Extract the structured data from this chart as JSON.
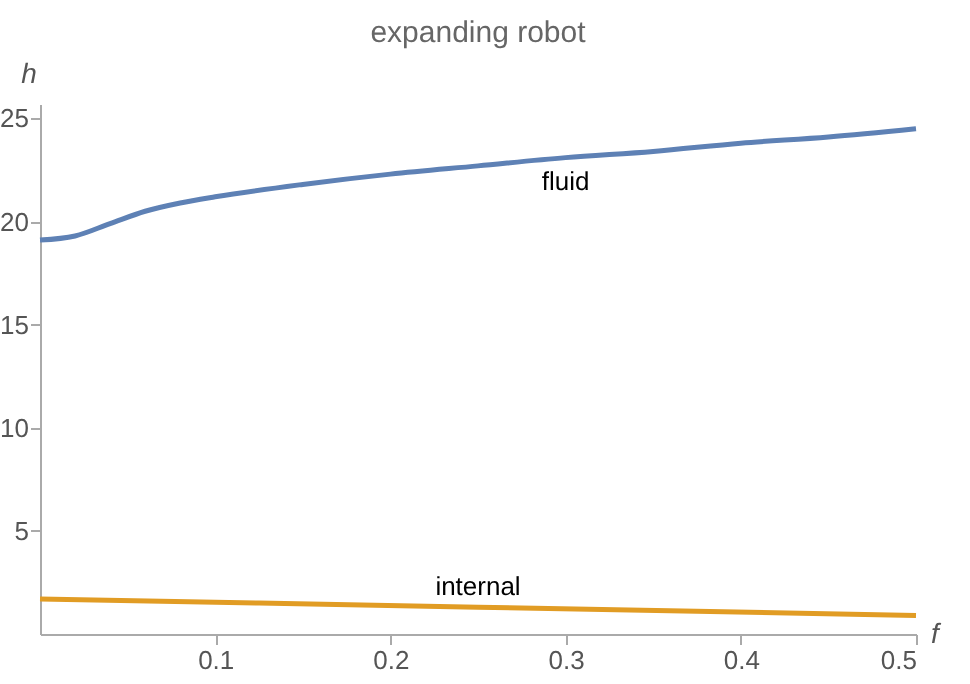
{
  "chart_data": {
    "type": "line",
    "title": "expanding robot",
    "xlabel": "f",
    "ylabel": "h",
    "xlim": [
      0,
      0.5
    ],
    "ylim": [
      0,
      25.7
    ],
    "xticks": [
      0.1,
      0.2,
      0.3,
      0.4,
      0.5
    ],
    "yticks": [
      5,
      10,
      15,
      20,
      25
    ],
    "grid": false,
    "legend": false,
    "series": [
      {
        "name": "fluid",
        "color": "#5e81b5",
        "x": [
          0,
          0.02,
          0.04,
          0.06,
          0.08,
          0.1,
          0.15,
          0.2,
          0.25,
          0.3,
          0.35,
          0.4,
          0.45,
          0.5
        ],
        "values": [
          19.1,
          19.3,
          19.9,
          20.5,
          20.9,
          21.2,
          21.8,
          22.3,
          22.7,
          23.1,
          23.4,
          23.8,
          24.1,
          24.5
        ]
      },
      {
        "name": "internal",
        "color": "#e19c24",
        "x": [
          0,
          0.25,
          0.5
        ],
        "values": [
          1.7,
          1.3,
          0.9
        ]
      }
    ]
  }
}
